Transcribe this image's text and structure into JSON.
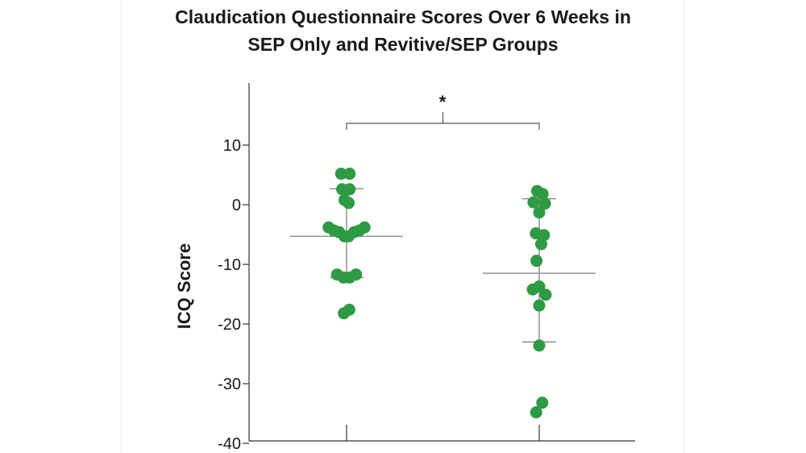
{
  "chart_data": {
    "type": "scatter",
    "title_line1": "Claudication Questionnaire Scores Over 6 Weeks in",
    "title_line2": "SEP Only and Revitive/SEP Groups",
    "ylabel": "ICQ Score",
    "ylim": [
      -40,
      18
    ],
    "yticks": [
      10,
      0,
      -10,
      -20,
      -30,
      -40
    ],
    "grid": false,
    "point_color": "#2e9a44",
    "line_color": "#888888",
    "significance_label": "*",
    "groups": [
      {
        "summary": {
          "center": -5.3,
          "upper": 2.7,
          "lower": -12.2
        },
        "points": [
          {
            "x": -0.16,
            "y": 5.2
          },
          {
            "x": 0.09,
            "y": 5.2
          },
          {
            "x": -0.13,
            "y": 2.6
          },
          {
            "x": 0.09,
            "y": 2.6
          },
          {
            "x": -0.06,
            "y": 0.8
          },
          {
            "x": 0.06,
            "y": 0.3
          },
          {
            "x": -0.53,
            "y": -3.8
          },
          {
            "x": -0.38,
            "y": -4.3
          },
          {
            "x": -0.22,
            "y": -4.6
          },
          {
            "x": -0.06,
            "y": -5.3
          },
          {
            "x": 0.06,
            "y": -5.3
          },
          {
            "x": 0.22,
            "y": -4.6
          },
          {
            "x": 0.38,
            "y": -4.3
          },
          {
            "x": 0.53,
            "y": -3.8
          },
          {
            "x": -0.28,
            "y": -11.7
          },
          {
            "x": -0.09,
            "y": -12.2
          },
          {
            "x": 0.09,
            "y": -12.2
          },
          {
            "x": 0.28,
            "y": -11.7
          },
          {
            "x": -0.08,
            "y": -18.2
          },
          {
            "x": 0.08,
            "y": -17.6
          }
        ]
      },
      {
        "summary": {
          "center": -11.5,
          "upper": 1.0,
          "lower": -23.0
        },
        "points": [
          {
            "x": -0.06,
            "y": 2.3
          },
          {
            "x": 0.1,
            "y": 1.8
          },
          {
            "x": -0.17,
            "y": 0.4
          },
          {
            "x": 0.17,
            "y": 0.2
          },
          {
            "x": 0.0,
            "y": -1.3
          },
          {
            "x": -0.1,
            "y": -4.8
          },
          {
            "x": 0.14,
            "y": -5.1
          },
          {
            "x": 0.06,
            "y": -6.6
          },
          {
            "x": -0.08,
            "y": -9.4
          },
          {
            "x": -0.19,
            "y": -14.2
          },
          {
            "x": 0.0,
            "y": -13.7
          },
          {
            "x": 0.19,
            "y": -15.1
          },
          {
            "x": 0.0,
            "y": -16.9
          },
          {
            "x": 0.0,
            "y": -23.6
          },
          {
            "x": -0.09,
            "y": -34.8
          },
          {
            "x": 0.09,
            "y": -33.2
          }
        ]
      }
    ]
  }
}
